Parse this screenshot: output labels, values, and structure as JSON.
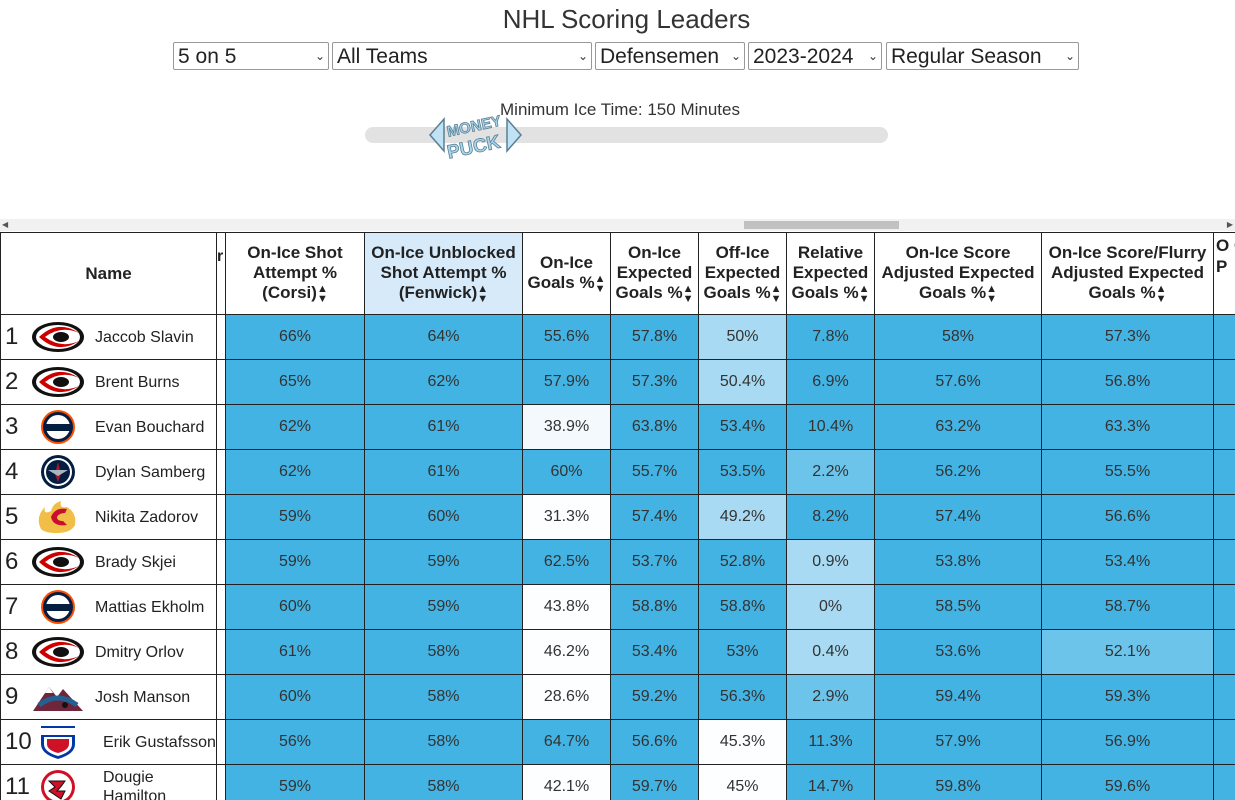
{
  "page": {
    "title": "NHL Scoring Leaders"
  },
  "filters": {
    "situation": "5 on 5",
    "team": "All Teams",
    "position": "Defensemen",
    "season": "2023-2024",
    "season_type": "Regular Season"
  },
  "slider": {
    "label": "Minimum Ice Time: 150 Minutes",
    "logo_text_top": "MONEY",
    "logo_text_bottom": "PUCK"
  },
  "table": {
    "columns": [
      {
        "key": "name",
        "label": "Name"
      },
      {
        "key": "r",
        "label": "r"
      },
      {
        "key": "corsi",
        "label": "On-Ice Shot Attempt % (Corsi)"
      },
      {
        "key": "fenwick",
        "label": "On-Ice Unblocked Shot Attempt % (Fenwick)"
      },
      {
        "key": "goals",
        "label": "On-Ice Goals %"
      },
      {
        "key": "xgoals",
        "label": "On-Ice Expected Goals %"
      },
      {
        "key": "offxgoals",
        "label": "Off-Ice Expected Goals %"
      },
      {
        "key": "relxgoals",
        "label": "Relative Expected Goals %"
      },
      {
        "key": "scoreadj",
        "label": "On-Ice Score Adjusted Expected Goals %"
      },
      {
        "key": "flurryadj",
        "label": "On-Ice Score/Flurry Adjusted Expected Goals %"
      },
      {
        "key": "extra",
        "label": "O C P"
      }
    ],
    "rows": [
      {
        "rank": "1",
        "team": "CAR",
        "name": "Jaccob Slavin",
        "corsi": "66%",
        "fenwick": "64%",
        "goals": "55.6%",
        "xgoals": "57.8%",
        "offxgoals": "50%",
        "relxgoals": "7.8%",
        "scoreadj": "58%",
        "flurryadj": "57.3%"
      },
      {
        "rank": "2",
        "team": "CAR",
        "name": "Brent Burns",
        "corsi": "65%",
        "fenwick": "62%",
        "goals": "57.9%",
        "xgoals": "57.3%",
        "offxgoals": "50.4%",
        "relxgoals": "6.9%",
        "scoreadj": "57.6%",
        "flurryadj": "56.8%"
      },
      {
        "rank": "3",
        "team": "EDM",
        "name": "Evan Bouchard",
        "corsi": "62%",
        "fenwick": "61%",
        "goals": "38.9%",
        "xgoals": "63.8%",
        "offxgoals": "53.4%",
        "relxgoals": "10.4%",
        "scoreadj": "63.2%",
        "flurryadj": "63.3%"
      },
      {
        "rank": "4",
        "team": "WPG",
        "name": "Dylan Samberg",
        "corsi": "62%",
        "fenwick": "61%",
        "goals": "60%",
        "xgoals": "55.7%",
        "offxgoals": "53.5%",
        "relxgoals": "2.2%",
        "scoreadj": "56.2%",
        "flurryadj": "55.5%"
      },
      {
        "rank": "5",
        "team": "CGY",
        "name": "Nikita Zadorov",
        "corsi": "59%",
        "fenwick": "60%",
        "goals": "31.3%",
        "xgoals": "57.4%",
        "offxgoals": "49.2%",
        "relxgoals": "8.2%",
        "scoreadj": "57.4%",
        "flurryadj": "56.6%"
      },
      {
        "rank": "6",
        "team": "CAR",
        "name": "Brady Skjei",
        "corsi": "59%",
        "fenwick": "59%",
        "goals": "62.5%",
        "xgoals": "53.7%",
        "offxgoals": "52.8%",
        "relxgoals": "0.9%",
        "scoreadj": "53.8%",
        "flurryadj": "53.4%"
      },
      {
        "rank": "7",
        "team": "EDM",
        "name": "Mattias Ekholm",
        "corsi": "60%",
        "fenwick": "59%",
        "goals": "43.8%",
        "xgoals": "58.8%",
        "offxgoals": "58.8%",
        "relxgoals": "0%",
        "scoreadj": "58.5%",
        "flurryadj": "58.7%"
      },
      {
        "rank": "8",
        "team": "CAR",
        "name": "Dmitry Orlov",
        "corsi": "61%",
        "fenwick": "58%",
        "goals": "46.2%",
        "xgoals": "53.4%",
        "offxgoals": "53%",
        "relxgoals": "0.4%",
        "scoreadj": "53.6%",
        "flurryadj": "52.1%"
      },
      {
        "rank": "9",
        "team": "COL",
        "name": "Josh Manson",
        "corsi": "60%",
        "fenwick": "58%",
        "goals": "28.6%",
        "xgoals": "59.2%",
        "offxgoals": "56.3%",
        "relxgoals": "2.9%",
        "scoreadj": "59.4%",
        "flurryadj": "59.3%"
      },
      {
        "rank": "10",
        "team": "NYR",
        "name": "Erik Gustafsson",
        "corsi": "56%",
        "fenwick": "58%",
        "goals": "64.7%",
        "xgoals": "56.6%",
        "offxgoals": "45.3%",
        "relxgoals": "11.3%",
        "scoreadj": "57.9%",
        "flurryadj": "56.9%"
      },
      {
        "rank": "11",
        "team": "NJD",
        "name": "Dougie Hamilton",
        "corsi": "59%",
        "fenwick": "58%",
        "goals": "42.1%",
        "xgoals": "59.7%",
        "offxgoals": "45%",
        "relxgoals": "14.7%",
        "scoreadj": "59.8%",
        "flurryadj": "59.6%"
      }
    ],
    "shading": [
      [
        "c-dark",
        "c-dark",
        "c-dark",
        "c-dark",
        "c-light",
        "c-dark",
        "c-dark",
        "c-dark"
      ],
      [
        "c-dark",
        "c-dark",
        "c-dark",
        "c-dark",
        "c-light",
        "c-dark",
        "c-dark",
        "c-dark"
      ],
      [
        "c-dark",
        "c-dark",
        "c-pale",
        "c-dark",
        "c-dark",
        "c-dark",
        "c-dark",
        "c-dark"
      ],
      [
        "c-dark",
        "c-dark",
        "c-dark",
        "c-dark",
        "c-dark",
        "c-mid",
        "c-dark",
        "c-dark"
      ],
      [
        "c-dark",
        "c-dark",
        "c-white",
        "c-dark",
        "c-light",
        "c-dark",
        "c-dark",
        "c-dark"
      ],
      [
        "c-dark",
        "c-dark",
        "c-dark",
        "c-dark",
        "c-dark",
        "c-light",
        "c-dark",
        "c-dark"
      ],
      [
        "c-dark",
        "c-dark",
        "c-white",
        "c-dark",
        "c-dark",
        "c-light",
        "c-dark",
        "c-dark"
      ],
      [
        "c-dark",
        "c-dark",
        "c-white",
        "c-dark",
        "c-dark",
        "c-light",
        "c-dark",
        "c-mid"
      ],
      [
        "c-dark",
        "c-dark",
        "c-white",
        "c-dark",
        "c-dark",
        "c-mid",
        "c-dark",
        "c-dark"
      ],
      [
        "c-dark",
        "c-dark",
        "c-dark",
        "c-dark",
        "c-white",
        "c-dark",
        "c-dark",
        "c-dark"
      ],
      [
        "c-dark",
        "c-dark",
        "c-white",
        "c-dark",
        "c-white",
        "c-dark",
        "c-dark",
        "c-dark"
      ]
    ],
    "team_colors": {
      "CAR": "#cc0000",
      "EDM": "#041e42",
      "WPG": "#041e42",
      "CGY": "#c8102e",
      "COL": "#6f263d",
      "NYR": "#0038a8",
      "NJD": "#ce1126"
    },
    "team_logo_text": {
      "EDM": "OILERS",
      "NYR": "NEW YORK RANGERS"
    }
  }
}
